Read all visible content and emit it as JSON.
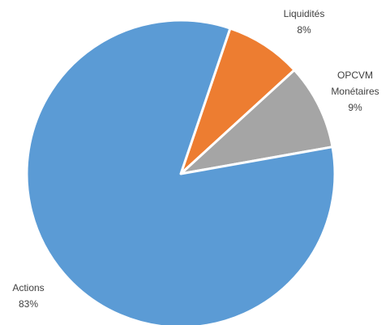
{
  "chart_data": {
    "type": "pie",
    "title": "",
    "series": [
      {
        "values": [
          8,
          9,
          83
        ]
      }
    ],
    "categories": [
      "Liquidités",
      "OPCVM Monétaires",
      "Actions"
    ],
    "values": [
      8,
      9,
      83
    ],
    "value_labels": [
      "8%",
      "9%",
      "83%"
    ],
    "colors": [
      "#ED7D31",
      "#A5A5A5",
      "#5B9BD5"
    ],
    "legend": "none"
  }
}
